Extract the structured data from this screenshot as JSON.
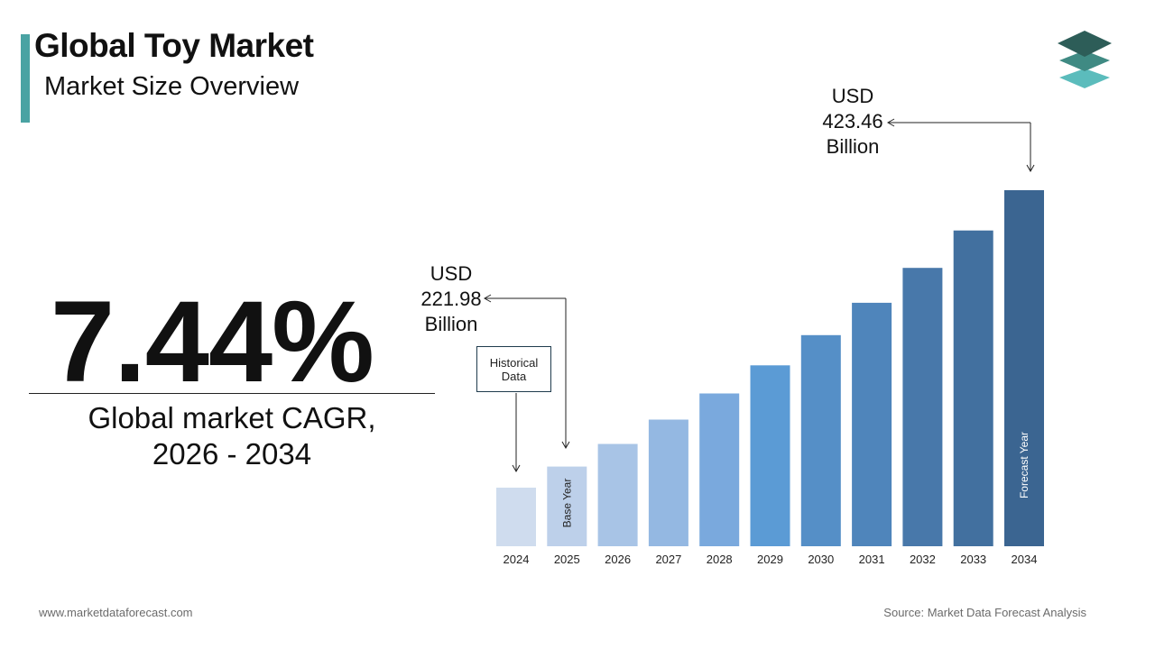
{
  "header": {
    "title": "Global Toy Market",
    "subtitle": "Market Size Overview"
  },
  "brand": {
    "logo_icon": "stacked-layers-icon",
    "colors": [
      "#2d5d58",
      "#3f8a83",
      "#5bbcbc"
    ]
  },
  "kpi": {
    "cagr_value": "7.44%",
    "cagr_label_line1": "Global market CAGR,",
    "cagr_label_line2": "2026 - 2034"
  },
  "callouts": {
    "end_value": {
      "line1": "USD",
      "line2": "423.46",
      "line3": "Billion"
    },
    "base_value": {
      "line1": "USD",
      "line2": "221.98",
      "line3": "Billion"
    },
    "historical_box": {
      "line1": "Historical",
      "line2": "Data"
    }
  },
  "chart_data": {
    "type": "bar",
    "categories": [
      "2024",
      "2025",
      "2026",
      "2027",
      "2028",
      "2029",
      "2030",
      "2031",
      "2032",
      "2033",
      "2034"
    ],
    "values": [
      206.6,
      221.98,
      238.5,
      256.2,
      275.3,
      295.8,
      317.8,
      341.4,
      366.8,
      394.1,
      423.46
    ],
    "colors": [
      "#cfdcee",
      "#bdd0ea",
      "#a8c4e6",
      "#94b8e2",
      "#7aa9dd",
      "#5b9bd5",
      "#558fc7",
      "#4f85bb",
      "#4878aa",
      "#42709f",
      "#3b6591"
    ],
    "bar_labels": {
      "2025": "Base Year",
      "2034": "Forecast Year"
    },
    "annotations": [
      {
        "category": "2025",
        "text": "USD 221.98 Billion"
      },
      {
        "category": "2034",
        "text": "USD 423.46 Billion"
      }
    ],
    "title": "",
    "xlabel": "",
    "ylabel": ""
  },
  "footer": {
    "website": "www.marketdataforecast.com",
    "source": "Source: Market Data Forecast Analysis"
  }
}
